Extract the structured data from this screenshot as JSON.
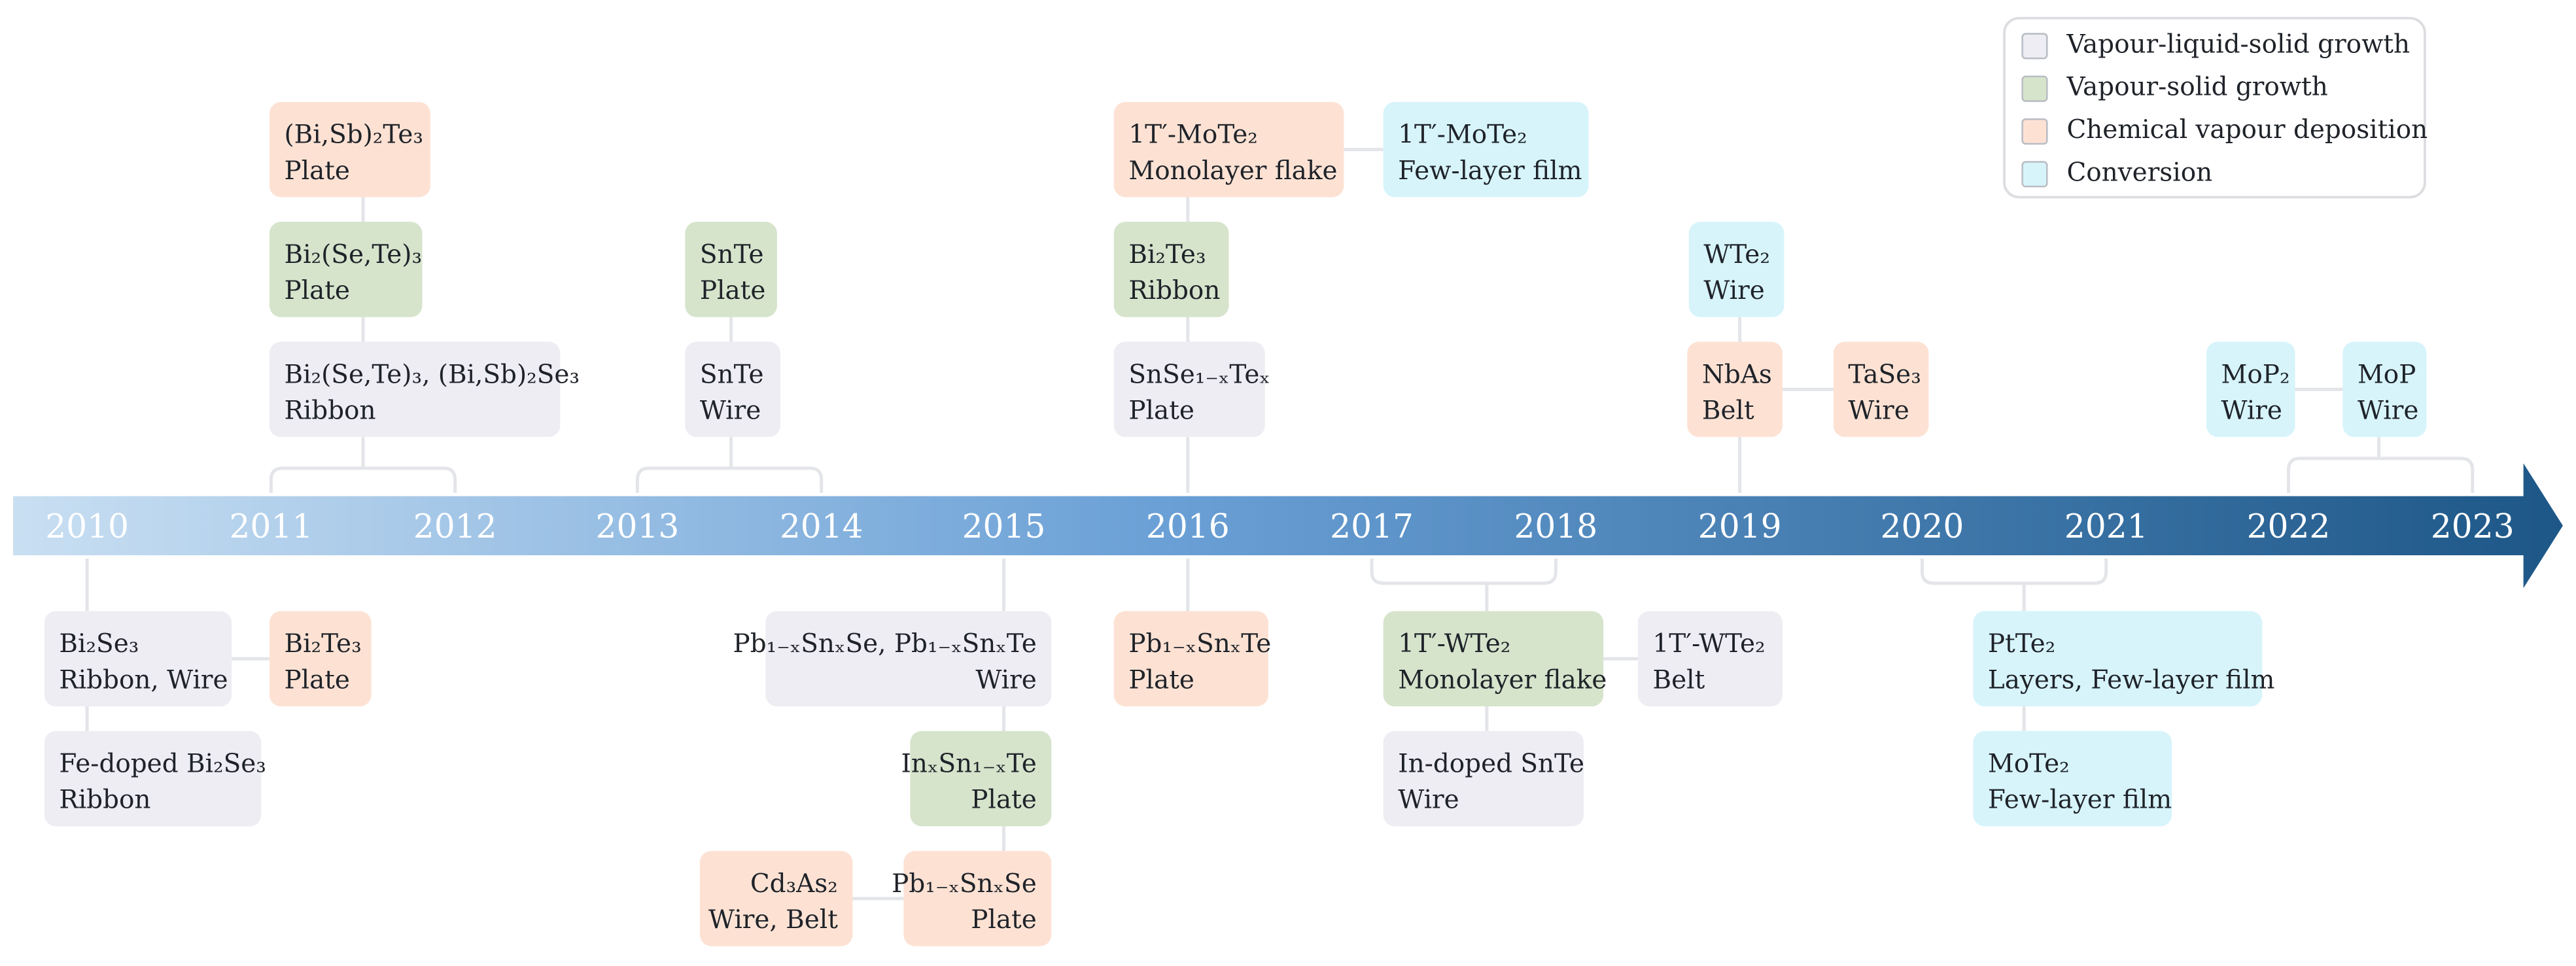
{
  "legend": [
    {
      "label": "Vapour-liquid-solid growth",
      "color": "#ededf3"
    },
    {
      "label": "Vapour-solid growth",
      "color": "#d6e4cc"
    },
    {
      "label": "Chemical vapour deposition",
      "color": "#fde2d4"
    },
    {
      "label": "Conversion",
      "color": "#d7f4fb"
    }
  ],
  "timeline": {
    "years": [
      "2010",
      "2011",
      "2012",
      "2013",
      "2014",
      "2015",
      "2016",
      "2017",
      "2018",
      "2019",
      "2020",
      "2021",
      "2022",
      "2023"
    ]
  },
  "nodes": [
    {
      "title": "(Bi,Sb)₂Te₃",
      "subtitle": "Plate",
      "color": "#fde2d4"
    },
    {
      "title": "Bi₂(Se,Te)₃",
      "subtitle": "Plate",
      "color": "#d6e4cc"
    },
    {
      "title": "Bi₂(Se,Te)₃, (Bi,Sb)₂Se₃",
      "subtitle": "Ribbon",
      "color": "#ededf3"
    },
    {
      "title": "SnTe",
      "subtitle": "Plate",
      "color": "#d6e4cc"
    },
    {
      "title": "SnTe",
      "subtitle": "Wire",
      "color": "#ededf3"
    },
    {
      "title": "1T′-MoTe₂",
      "subtitle": "Monolayer flake",
      "color": "#fde2d4"
    },
    {
      "title": "1T′-MoTe₂",
      "subtitle": "Few-layer film",
      "color": "#d7f4fb"
    },
    {
      "title": "Bi₂Te₃",
      "subtitle": "Ribbon",
      "color": "#d6e4cc"
    },
    {
      "title": "SnSe₁₋ₓTeₓ",
      "subtitle": "Plate",
      "color": "#ededf3"
    },
    {
      "title": "WTe₂",
      "subtitle": "Wire",
      "color": "#d7f4fb"
    },
    {
      "title": "NbAs",
      "subtitle": "Belt",
      "color": "#fde2d4"
    },
    {
      "title": "TaSe₃",
      "subtitle": "Wire",
      "color": "#fde2d4"
    },
    {
      "title": "MoP₂",
      "subtitle": "Wire",
      "color": "#d7f4fb"
    },
    {
      "title": "MoP",
      "subtitle": "Wire",
      "color": "#d7f4fb"
    },
    {
      "title": "Bi₂Se₃",
      "subtitle": "Ribbon, Wire",
      "color": "#ededf3"
    },
    {
      "title": "Bi₂Te₃",
      "subtitle": "Plate",
      "color": "#fde2d4"
    },
    {
      "title": "Fe-doped Bi₂Se₃",
      "subtitle": "Ribbon",
      "color": "#ededf3"
    },
    {
      "title": "Pb₁₋ₓSnₓSe, Pb₁₋ₓSnₓTe",
      "subtitle": "Wire",
      "color": "#ededf3"
    },
    {
      "title": "InₓSn₁₋ₓTe",
      "subtitle": "Plate",
      "color": "#d6e4cc"
    },
    {
      "title": "Cd₃As₂",
      "subtitle": "Wire, Belt",
      "color": "#fde2d4"
    },
    {
      "title": "Pb₁₋ₓSnₓSe",
      "subtitle": "Plate",
      "color": "#fde2d4"
    },
    {
      "title": "Pb₁₋ₓSnₓTe",
      "subtitle": "Plate",
      "color": "#fde2d4"
    },
    {
      "title": "1T′-WTe₂",
      "subtitle": "Monolayer flake",
      "color": "#d6e4cc"
    },
    {
      "title": "1T′-WTe₂",
      "subtitle": "Belt",
      "color": "#ededf3"
    },
    {
      "title": "In-doped SnTe",
      "subtitle": "Wire",
      "color": "#ededf3"
    },
    {
      "title": "PtTe₂",
      "subtitle": "Layers, Few-layer film",
      "color": "#d7f4fb"
    },
    {
      "title": "MoTe₂",
      "subtitle": "Few-layer film",
      "color": "#d7f4fb"
    }
  ]
}
